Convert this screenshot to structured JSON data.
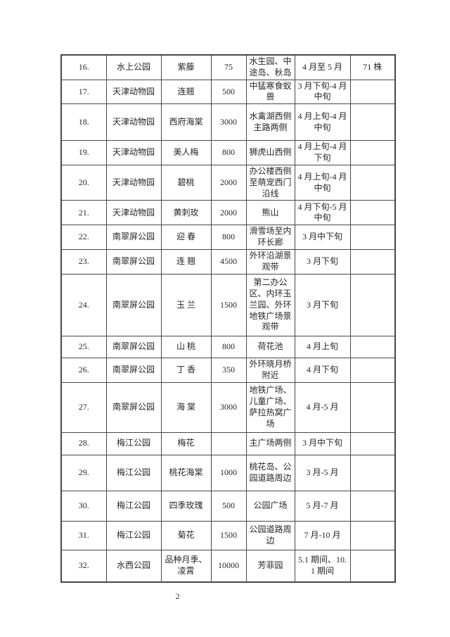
{
  "page": {
    "number": "2",
    "background_color": "#ffffff",
    "border_color": "#474747",
    "text_color": "#262626"
  },
  "table": {
    "column_keys": [
      "index",
      "park",
      "flower",
      "quantity",
      "location",
      "time",
      "note"
    ],
    "rows": [
      {
        "index": "16.",
        "park": "水上公园",
        "flower": "紫藤",
        "quantity": "75",
        "location": "水生园、中途岛、秋岛",
        "time": "4 月至 5 月",
        "note": "71 株"
      },
      {
        "index": "17.",
        "park": "天津动物园",
        "flower": "连翘",
        "quantity": "500",
        "location": "中猛寒食蚁兽",
        "time": "3 月下旬-4 月中旬",
        "note": ""
      },
      {
        "index": "18.",
        "park": "天津动物园",
        "flower": "西府海棠",
        "quantity": "3000",
        "location": "水禽湖西侧主路两侧",
        "time": "4 月上旬-4 月中旬",
        "note": ""
      },
      {
        "index": "19.",
        "park": "天津动物园",
        "flower": "美人梅",
        "quantity": "800",
        "location": "狮虎山西侧",
        "time": "4 月上旬-4 月下旬",
        "note": ""
      },
      {
        "index": "20.",
        "park": "天津动物园",
        "flower": "碧桃",
        "quantity": "2000",
        "location": "办公楼西侧至萌宠西门沿线",
        "time": "4 月上旬-4 月中旬",
        "note": ""
      },
      {
        "index": "21.",
        "park": "天津动物园",
        "flower": "黄刺玫",
        "quantity": "2000",
        "location": "熊山",
        "time": "4 月下旬-5 月中旬",
        "note": ""
      },
      {
        "index": "22.",
        "park": "南翠屏公园",
        "flower": "迎 春",
        "quantity": "800",
        "location": "滑雪场至内环长廊",
        "time": "3 月中下旬",
        "note": ""
      },
      {
        "index": "23.",
        "park": "南翠屏公园",
        "flower": "连 翘",
        "quantity": "4500",
        "location": "外环沿湖景观带",
        "time": "3 月下旬",
        "note": ""
      },
      {
        "index": "24.",
        "park": "南翠屏公园",
        "flower": "玉 兰",
        "quantity": "1500",
        "location": "第二办公区、内环玉兰园、外环地铁广场景观带",
        "time": "3 月下旬",
        "note": ""
      },
      {
        "index": "25.",
        "park": "南翠屏公园",
        "flower": "山 桃",
        "quantity": "800",
        "location": "荷花池",
        "time": "4 月上旬",
        "note": ""
      },
      {
        "index": "26.",
        "park": "南翠屏公园",
        "flower": "丁 香",
        "quantity": "350",
        "location": "外环晓月桥附近",
        "time": "4 月下旬",
        "note": ""
      },
      {
        "index": "27.",
        "park": "南翠屏公园",
        "flower": "海 棠",
        "quantity": "3000",
        "location": "地铁广场、儿童广场、萨拉热窝广场",
        "time": "4 月-5 月",
        "note": ""
      },
      {
        "index": "28.",
        "park": "梅江公园",
        "flower": "梅花",
        "quantity": "",
        "location": "主广场两侧",
        "time": "3 月中下旬",
        "note": ""
      },
      {
        "index": "29.",
        "park": "梅江公园",
        "flower": "桃花海棠",
        "quantity": "1000",
        "location": "桃花岛、公园道路周边",
        "time": "3 月-5 月",
        "note": ""
      },
      {
        "index": "30.",
        "park": "梅江公园",
        "flower": "四季玫瑰",
        "quantity": "500",
        "location": "公园广场",
        "time": "5 月-7 月",
        "note": ""
      },
      {
        "index": "31.",
        "park": "梅江公园",
        "flower": "菊花",
        "quantity": "1500",
        "location": "公园道路周边",
        "time": "7 月-10 月",
        "note": ""
      },
      {
        "index": "32.",
        "park": "水西公园",
        "flower": "品种月季、凌霄",
        "quantity": "10000",
        "location": "芳菲园",
        "time": "5.1 期间、10.1 期间",
        "note": ""
      }
    ]
  }
}
